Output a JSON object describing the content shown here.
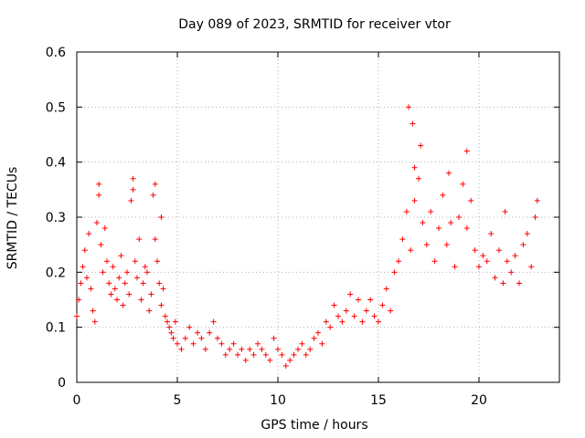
{
  "chart_data": {
    "type": "scatter",
    "title": "Day 089 of 2023, SRMTID for receiver vtor",
    "xlabel": "GPS time / hours",
    "ylabel": "SRMTID / TECUs",
    "xlim": [
      0,
      24
    ],
    "ylim": [
      0,
      0.6
    ],
    "grid": true,
    "marker": "+",
    "series_color": "#ff0000",
    "x_ticks": [
      0,
      5,
      10,
      15,
      20
    ],
    "x_tick_labels": [
      "0",
      "5",
      "10",
      "15",
      "20"
    ],
    "y_ticks": [
      0,
      0.1,
      0.2,
      0.3,
      0.4,
      0.5,
      0.6
    ],
    "y_tick_labels": [
      "0",
      "0.1",
      "0.2",
      "0.3",
      "0.4",
      "0.5",
      "0.6"
    ],
    "points": [
      [
        0.0,
        0.12
      ],
      [
        0.1,
        0.15
      ],
      [
        0.2,
        0.18
      ],
      [
        0.3,
        0.21
      ],
      [
        0.4,
        0.24
      ],
      [
        0.5,
        0.19
      ],
      [
        0.6,
        0.27
      ],
      [
        0.7,
        0.17
      ],
      [
        0.8,
        0.13
      ],
      [
        0.9,
        0.11
      ],
      [
        1.0,
        0.29
      ],
      [
        1.1,
        0.34
      ],
      [
        1.2,
        0.25
      ],
      [
        1.3,
        0.2
      ],
      [
        1.4,
        0.28
      ],
      [
        1.5,
        0.22
      ],
      [
        1.6,
        0.18
      ],
      [
        1.7,
        0.16
      ],
      [
        1.8,
        0.21
      ],
      [
        1.9,
        0.17
      ],
      [
        2.0,
        0.15
      ],
      [
        2.1,
        0.19
      ],
      [
        2.2,
        0.23
      ],
      [
        2.3,
        0.14
      ],
      [
        2.4,
        0.18
      ],
      [
        2.5,
        0.2
      ],
      [
        2.6,
        0.16
      ],
      [
        2.7,
        0.33
      ],
      [
        2.8,
        0.37
      ],
      [
        2.9,
        0.22
      ],
      [
        3.0,
        0.19
      ],
      [
        3.1,
        0.26
      ],
      [
        3.2,
        0.15
      ],
      [
        3.3,
        0.18
      ],
      [
        3.4,
        0.21
      ],
      [
        3.5,
        0.2
      ],
      [
        3.6,
        0.13
      ],
      [
        3.7,
        0.16
      ],
      [
        3.8,
        0.34
      ],
      [
        3.9,
        0.26
      ],
      [
        4.0,
        0.22
      ],
      [
        4.1,
        0.18
      ],
      [
        4.2,
        0.14
      ],
      [
        4.3,
        0.17
      ],
      [
        4.4,
        0.12
      ],
      [
        4.5,
        0.11
      ],
      [
        4.6,
        0.1
      ],
      [
        4.7,
        0.09
      ],
      [
        4.8,
        0.08
      ],
      [
        4.9,
        0.11
      ],
      [
        5.0,
        0.07
      ],
      [
        5.2,
        0.06
      ],
      [
        5.4,
        0.08
      ],
      [
        5.6,
        0.1
      ],
      [
        5.8,
        0.07
      ],
      [
        6.0,
        0.09
      ],
      [
        6.2,
        0.08
      ],
      [
        6.4,
        0.06
      ],
      [
        6.6,
        0.09
      ],
      [
        6.8,
        0.11
      ],
      [
        7.0,
        0.08
      ],
      [
        7.2,
        0.07
      ],
      [
        7.4,
        0.05
      ],
      [
        7.6,
        0.06
      ],
      [
        7.8,
        0.07
      ],
      [
        8.0,
        0.05
      ],
      [
        8.2,
        0.06
      ],
      [
        8.4,
        0.04
      ],
      [
        8.6,
        0.06
      ],
      [
        8.8,
        0.05
      ],
      [
        9.0,
        0.07
      ],
      [
        9.2,
        0.06
      ],
      [
        9.4,
        0.05
      ],
      [
        9.6,
        0.04
      ],
      [
        9.8,
        0.08
      ],
      [
        10.0,
        0.06
      ],
      [
        10.2,
        0.05
      ],
      [
        10.4,
        0.03
      ],
      [
        10.6,
        0.04
      ],
      [
        10.8,
        0.05
      ],
      [
        11.0,
        0.06
      ],
      [
        11.2,
        0.07
      ],
      [
        11.4,
        0.05
      ],
      [
        11.6,
        0.06
      ],
      [
        11.8,
        0.08
      ],
      [
        12.0,
        0.09
      ],
      [
        12.2,
        0.07
      ],
      [
        12.4,
        0.11
      ],
      [
        12.6,
        0.1
      ],
      [
        12.8,
        0.14
      ],
      [
        13.0,
        0.12
      ],
      [
        13.2,
        0.11
      ],
      [
        13.4,
        0.13
      ],
      [
        13.6,
        0.16
      ],
      [
        13.8,
        0.12
      ],
      [
        14.0,
        0.15
      ],
      [
        14.2,
        0.11
      ],
      [
        14.4,
        0.13
      ],
      [
        14.6,
        0.15
      ],
      [
        14.8,
        0.12
      ],
      [
        15.0,
        0.11
      ],
      [
        15.2,
        0.14
      ],
      [
        15.4,
        0.17
      ],
      [
        15.6,
        0.13
      ],
      [
        15.8,
        0.2
      ],
      [
        16.0,
        0.22
      ],
      [
        16.2,
        0.26
      ],
      [
        16.4,
        0.31
      ],
      [
        16.6,
        0.24
      ],
      [
        16.8,
        0.33
      ],
      [
        17.0,
        0.37
      ],
      [
        17.2,
        0.29
      ],
      [
        17.4,
        0.25
      ],
      [
        17.6,
        0.31
      ],
      [
        17.8,
        0.22
      ],
      [
        18.0,
        0.28
      ],
      [
        18.2,
        0.34
      ],
      [
        18.4,
        0.25
      ],
      [
        18.6,
        0.29
      ],
      [
        18.8,
        0.21
      ],
      [
        19.0,
        0.3
      ],
      [
        19.2,
        0.36
      ],
      [
        19.4,
        0.28
      ],
      [
        19.6,
        0.33
      ],
      [
        19.8,
        0.24
      ],
      [
        20.0,
        0.21
      ],
      [
        20.2,
        0.23
      ],
      [
        20.4,
        0.22
      ],
      [
        20.6,
        0.27
      ],
      [
        20.8,
        0.19
      ],
      [
        21.0,
        0.24
      ],
      [
        21.2,
        0.18
      ],
      [
        21.4,
        0.22
      ],
      [
        21.6,
        0.2
      ],
      [
        21.8,
        0.23
      ],
      [
        22.0,
        0.18
      ],
      [
        22.2,
        0.25
      ],
      [
        22.4,
        0.27
      ],
      [
        22.6,
        0.21
      ],
      [
        22.8,
        0.3
      ],
      [
        22.9,
        0.33
      ],
      [
        16.5,
        0.5
      ],
      [
        16.7,
        0.47
      ],
      [
        17.1,
        0.43
      ],
      [
        19.4,
        0.42
      ],
      [
        16.8,
        0.39
      ],
      [
        18.5,
        0.38
      ],
      [
        21.3,
        0.31
      ],
      [
        1.1,
        0.36
      ],
      [
        3.9,
        0.36
      ],
      [
        2.8,
        0.35
      ],
      [
        4.2,
        0.3
      ]
    ]
  }
}
